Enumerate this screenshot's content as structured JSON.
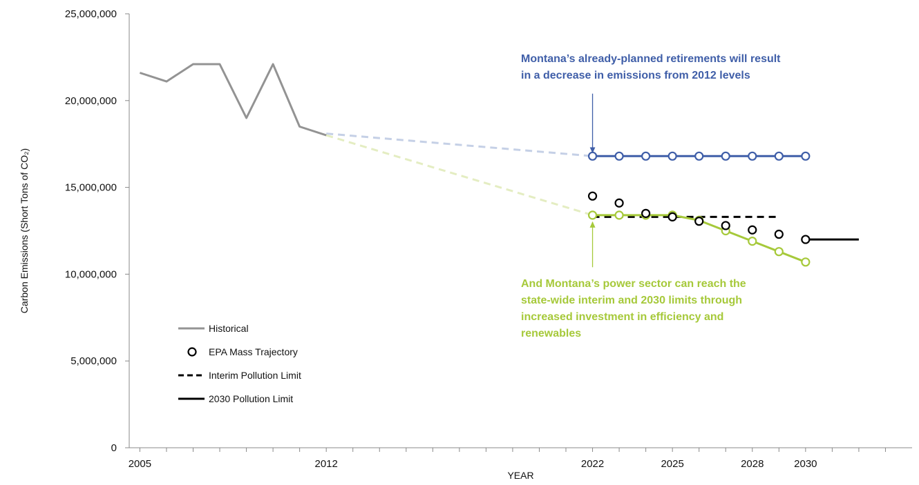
{
  "chart_data": {
    "type": "line",
    "title": "",
    "xlabel": "YEAR",
    "ylabel": "Carbon Emissions  (Short Tons of CO₂)",
    "x_range": [
      2004.6,
      2034
    ],
    "ylim": [
      0,
      25000000
    ],
    "y_ticks": [
      0,
      5000000,
      10000000,
      15000000,
      20000000,
      25000000
    ],
    "y_tick_labels": [
      "0",
      "5,000,000",
      "10,000,000",
      "15,000,000",
      "20,000,000",
      "25,000,000"
    ],
    "x_ticks": [
      2005,
      2012,
      2022,
      2025,
      2028,
      2030
    ],
    "x_tick_labels": [
      "2005",
      "2012",
      "2022",
      "2025",
      "2028",
      "2030"
    ],
    "grid": false,
    "legend_position": "bottom-left",
    "series": [
      {
        "key": "historical",
        "name": "Historical",
        "color": "#939393",
        "style": "solid",
        "marker": "none",
        "points": [
          [
            2005,
            21600000
          ],
          [
            2006,
            21100000
          ],
          [
            2007,
            22100000
          ],
          [
            2008,
            22100000
          ],
          [
            2009,
            19000000
          ],
          [
            2010,
            22100000
          ],
          [
            2011,
            18500000
          ],
          [
            2012,
            18000000
          ]
        ]
      },
      {
        "key": "epa_mass_trajectory",
        "name": "EPA Mass Trajectory",
        "color": "#000000",
        "style": "none",
        "marker": "circle",
        "points": [
          [
            2022,
            14500000
          ],
          [
            2023,
            14100000
          ],
          [
            2024,
            13500000
          ],
          [
            2025,
            13300000
          ],
          [
            2026,
            13050000
          ],
          [
            2027,
            12800000
          ],
          [
            2028,
            12550000
          ],
          [
            2029,
            12300000
          ],
          [
            2030,
            12000000
          ]
        ]
      },
      {
        "key": "interim_pollution_limit",
        "name": "Interim Pollution Limit",
        "color": "#000000",
        "style": "dashed",
        "marker": "none",
        "points": [
          [
            2022,
            13300000
          ],
          [
            2029,
            13300000
          ]
        ]
      },
      {
        "key": "pollution_limit_2030",
        "name": "2030 Pollution Limit",
        "color": "#000000",
        "style": "solid",
        "marker": "none",
        "points": [
          [
            2030,
            12000000
          ],
          [
            2032,
            12000000
          ]
        ]
      },
      {
        "key": "planned_retirements",
        "color": "#3f5ea8",
        "style": "solid",
        "marker": "circle",
        "points": [
          [
            2022,
            16800000
          ],
          [
            2023,
            16800000
          ],
          [
            2024,
            16800000
          ],
          [
            2025,
            16800000
          ],
          [
            2026,
            16800000
          ],
          [
            2027,
            16800000
          ],
          [
            2028,
            16800000
          ],
          [
            2029,
            16800000
          ],
          [
            2030,
            16800000
          ]
        ]
      },
      {
        "key": "efficiency_renewables",
        "color": "#a6c93a",
        "style": "solid",
        "marker": "circle",
        "points": [
          [
            2022,
            13400000
          ],
          [
            2023,
            13400000
          ],
          [
            2024,
            13400000
          ],
          [
            2025,
            13400000
          ],
          [
            2026,
            13100000
          ],
          [
            2027,
            12500000
          ],
          [
            2028,
            11900000
          ],
          [
            2029,
            11300000
          ],
          [
            2030,
            10700000
          ]
        ]
      },
      {
        "key": "blue_projection",
        "color": "#c5d0e6",
        "style": "dashed",
        "marker": "none",
        "points": [
          [
            2012,
            18100000
          ],
          [
            2022,
            16800000
          ]
        ]
      },
      {
        "key": "green_projection",
        "color": "#e4edc2",
        "style": "dashed",
        "marker": "none",
        "points": [
          [
            2012,
            18000000
          ],
          [
            2022,
            13400000
          ]
        ]
      }
    ],
    "legend": [
      {
        "series": "historical",
        "label": "Historical",
        "symbol": "line"
      },
      {
        "series": "epa_mass_trajectory",
        "label": "EPA Mass Trajectory",
        "symbol": "circle"
      },
      {
        "series": "interim_pollution_limit",
        "label": "Interim Pollution Limit",
        "symbol": "dashed"
      },
      {
        "series": "pollution_limit_2030",
        "label": "2030 Pollution Limit",
        "symbol": "line"
      }
    ],
    "annotations": [
      {
        "key": "retirements-annotation",
        "color": "#3f5ea8",
        "lines": [
          "Montana’s already-planned retirements will result",
          "in a decrease in emissions from 2012 levels"
        ],
        "arrow_from": [
          2022,
          20400000
        ],
        "arrow_to": [
          2022,
          17000000
        ],
        "arrow_direction": "down"
      },
      {
        "key": "power-sector-annotation",
        "color": "#a6c93a",
        "lines": [
          "And Montana’s power sector can reach the",
          "state-wide interim and 2030 limits through",
          "increased investment in efficiency and",
          "renewables"
        ],
        "arrow_from": [
          2022,
          10400000
        ],
        "arrow_to": [
          2022,
          13000000
        ],
        "arrow_direction": "up"
      }
    ]
  }
}
